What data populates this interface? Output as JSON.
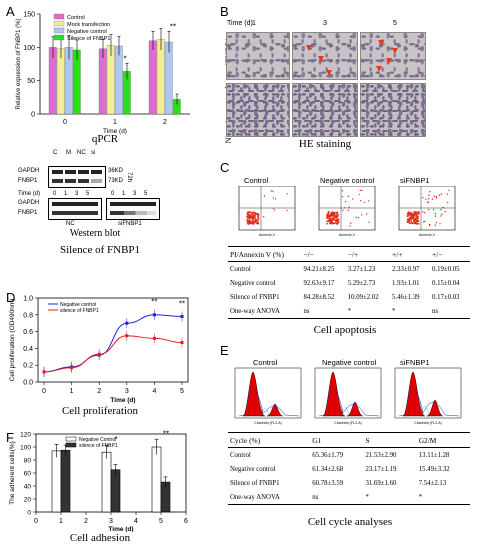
{
  "panels": {
    "A": "A",
    "B": "B",
    "C": "C",
    "D": "D",
    "E": "E",
    "F": "F"
  },
  "captions": {
    "qpcr": "qPCR",
    "western": "Western blot",
    "silence": "Silence of FNBP1",
    "he": "HE staining",
    "apoptosis": "Cell apoptosis",
    "proliferation": "Cell proliferation",
    "adhesion": "Cell adhesion",
    "cycle": "Cell cycle analyses"
  },
  "he": {
    "time_label": "Time (d)",
    "times": [
      "1",
      "3",
      "5"
    ],
    "rows": [
      "siFNBP1",
      "Negative control"
    ]
  },
  "western": {
    "lanes_top": [
      "C",
      "M",
      "NC",
      "si"
    ],
    "proteins": [
      "GAPDH",
      "FNBP1"
    ],
    "kd": [
      "36KD",
      "73KD"
    ],
    "hours": "72h",
    "time_label": "Time (d)",
    "time_ticks": [
      "0",
      "1",
      "3",
      "5",
      "0",
      "1",
      "3",
      "5"
    ],
    "groups": [
      "NC",
      "siFNBP1"
    ]
  },
  "flow": {
    "titles": [
      "Control",
      "Negative control",
      "siFNBP1"
    ],
    "x_axis": "Annexin-V"
  },
  "cycle_hist": {
    "titles": [
      "Control",
      "Negative control",
      "siFNBP1"
    ],
    "x_axis": "Channels (FL2-A)"
  },
  "apoptosis_table": {
    "header": [
      "PI/Annexin V (%)",
      "−/−",
      "−/+",
      "+/+",
      "+/−"
    ],
    "rows": [
      [
        "Control",
        "94.21±8.25",
        "3.27±1.23",
        "2.33±0.97",
        "0.19±0.05"
      ],
      [
        "Negative control",
        "92.63±9.17",
        "5.29±2.73",
        "1.93±1.01",
        "0.15±0.04"
      ],
      [
        "Silence of FNBP1",
        "84.28±8.52",
        "10.09±2.02",
        "5.46±1.39",
        "0.17±0.03"
      ],
      [
        "One-way ANOVA",
        "ns",
        "*",
        "*",
        "ns"
      ]
    ]
  },
  "cycle_table": {
    "header": [
      "Cycle (%)",
      "G1",
      "S",
      "G2/M"
    ],
    "rows": [
      [
        "Control",
        "65.36±1.79",
        "21.53±2.90",
        "13.11±1.28"
      ],
      [
        "Negative control",
        "61.34±2.68",
        "23.17±1.19",
        "15.49±3.32"
      ],
      [
        "Silence of FNBP1",
        "60.78±3.59",
        "31.69±1.60",
        "7.54±2.13"
      ],
      [
        "One-way ANOVA",
        "ns",
        "*",
        "*"
      ]
    ]
  },
  "chart_data": [
    {
      "id": "qpcr",
      "type": "bar",
      "categories": [
        "0",
        "1",
        "2"
      ],
      "xlabel": "Time (d)",
      "ylabel": "Relative expression of FNBP1 (%)",
      "ylim": [
        0,
        150
      ],
      "yticks": [
        "0",
        "50",
        "100",
        "150"
      ],
      "series": [
        {
          "name": "Control",
          "color": "#e06ad0",
          "values": [
            100,
            98,
            110
          ]
        },
        {
          "name": "Mock transfection",
          "color": "#f2ee96",
          "values": [
            98,
            103,
            112
          ]
        },
        {
          "name": "Negative control",
          "color": "#b0c8ee",
          "values": [
            100,
            102,
            108
          ]
        },
        {
          "name": "Silence of FNBP1",
          "color": "#28e018",
          "values": [
            96,
            64,
            22
          ]
        }
      ],
      "errors": [
        [
          16,
          14,
          14
        ],
        [
          14,
          16,
          16
        ],
        [
          18,
          14,
          16
        ],
        [
          15,
          12,
          8
        ]
      ],
      "annotations": [
        "*",
        "**"
      ]
    },
    {
      "id": "proliferation",
      "type": "line",
      "x": [
        0,
        1,
        2,
        3,
        4,
        5
      ],
      "xlabel": "Time (d)",
      "ylabel": "Cell proliferation (OD490nm)",
      "ylim": [
        0,
        1.0
      ],
      "yticks": [
        "0.0",
        "0.2",
        "0.4",
        "0.6",
        "0.8",
        "1.0"
      ],
      "xticks": [
        "0",
        "1",
        "2",
        "3",
        "4",
        "5"
      ],
      "series": [
        {
          "name": "Negative control",
          "color": "#2020e0",
          "values": [
            0.12,
            0.18,
            0.32,
            0.7,
            0.8,
            0.78
          ]
        },
        {
          "name": "silence of FNBP1",
          "color": "#e02020",
          "values": [
            0.12,
            0.17,
            0.33,
            0.55,
            0.52,
            0.47
          ]
        }
      ],
      "annotations": [
        "**",
        "**"
      ]
    },
    {
      "id": "adhesion",
      "type": "bar",
      "categories": [
        "1",
        "3",
        "5"
      ],
      "xlabel": "Time (d)",
      "ylabel": "The adherent cells(%)",
      "ylim": [
        0,
        120
      ],
      "yticks": [
        "0",
        "20",
        "40",
        "60",
        "80",
        "100",
        "120"
      ],
      "xticks": [
        "0",
        "1",
        "2",
        "3",
        "4",
        "5",
        "6"
      ],
      "series": [
        {
          "name": "Negative Control",
          "color": "#ffffff",
          "values": [
            94,
            92,
            100
          ]
        },
        {
          "name": "silence of FNBP1",
          "color": "#333333",
          "values": [
            95,
            65,
            46
          ]
        }
      ],
      "errors": [
        [
          10,
          10,
          12
        ],
        [
          8,
          8,
          8
        ]
      ],
      "annotations": [
        "*",
        "**"
      ]
    }
  ]
}
